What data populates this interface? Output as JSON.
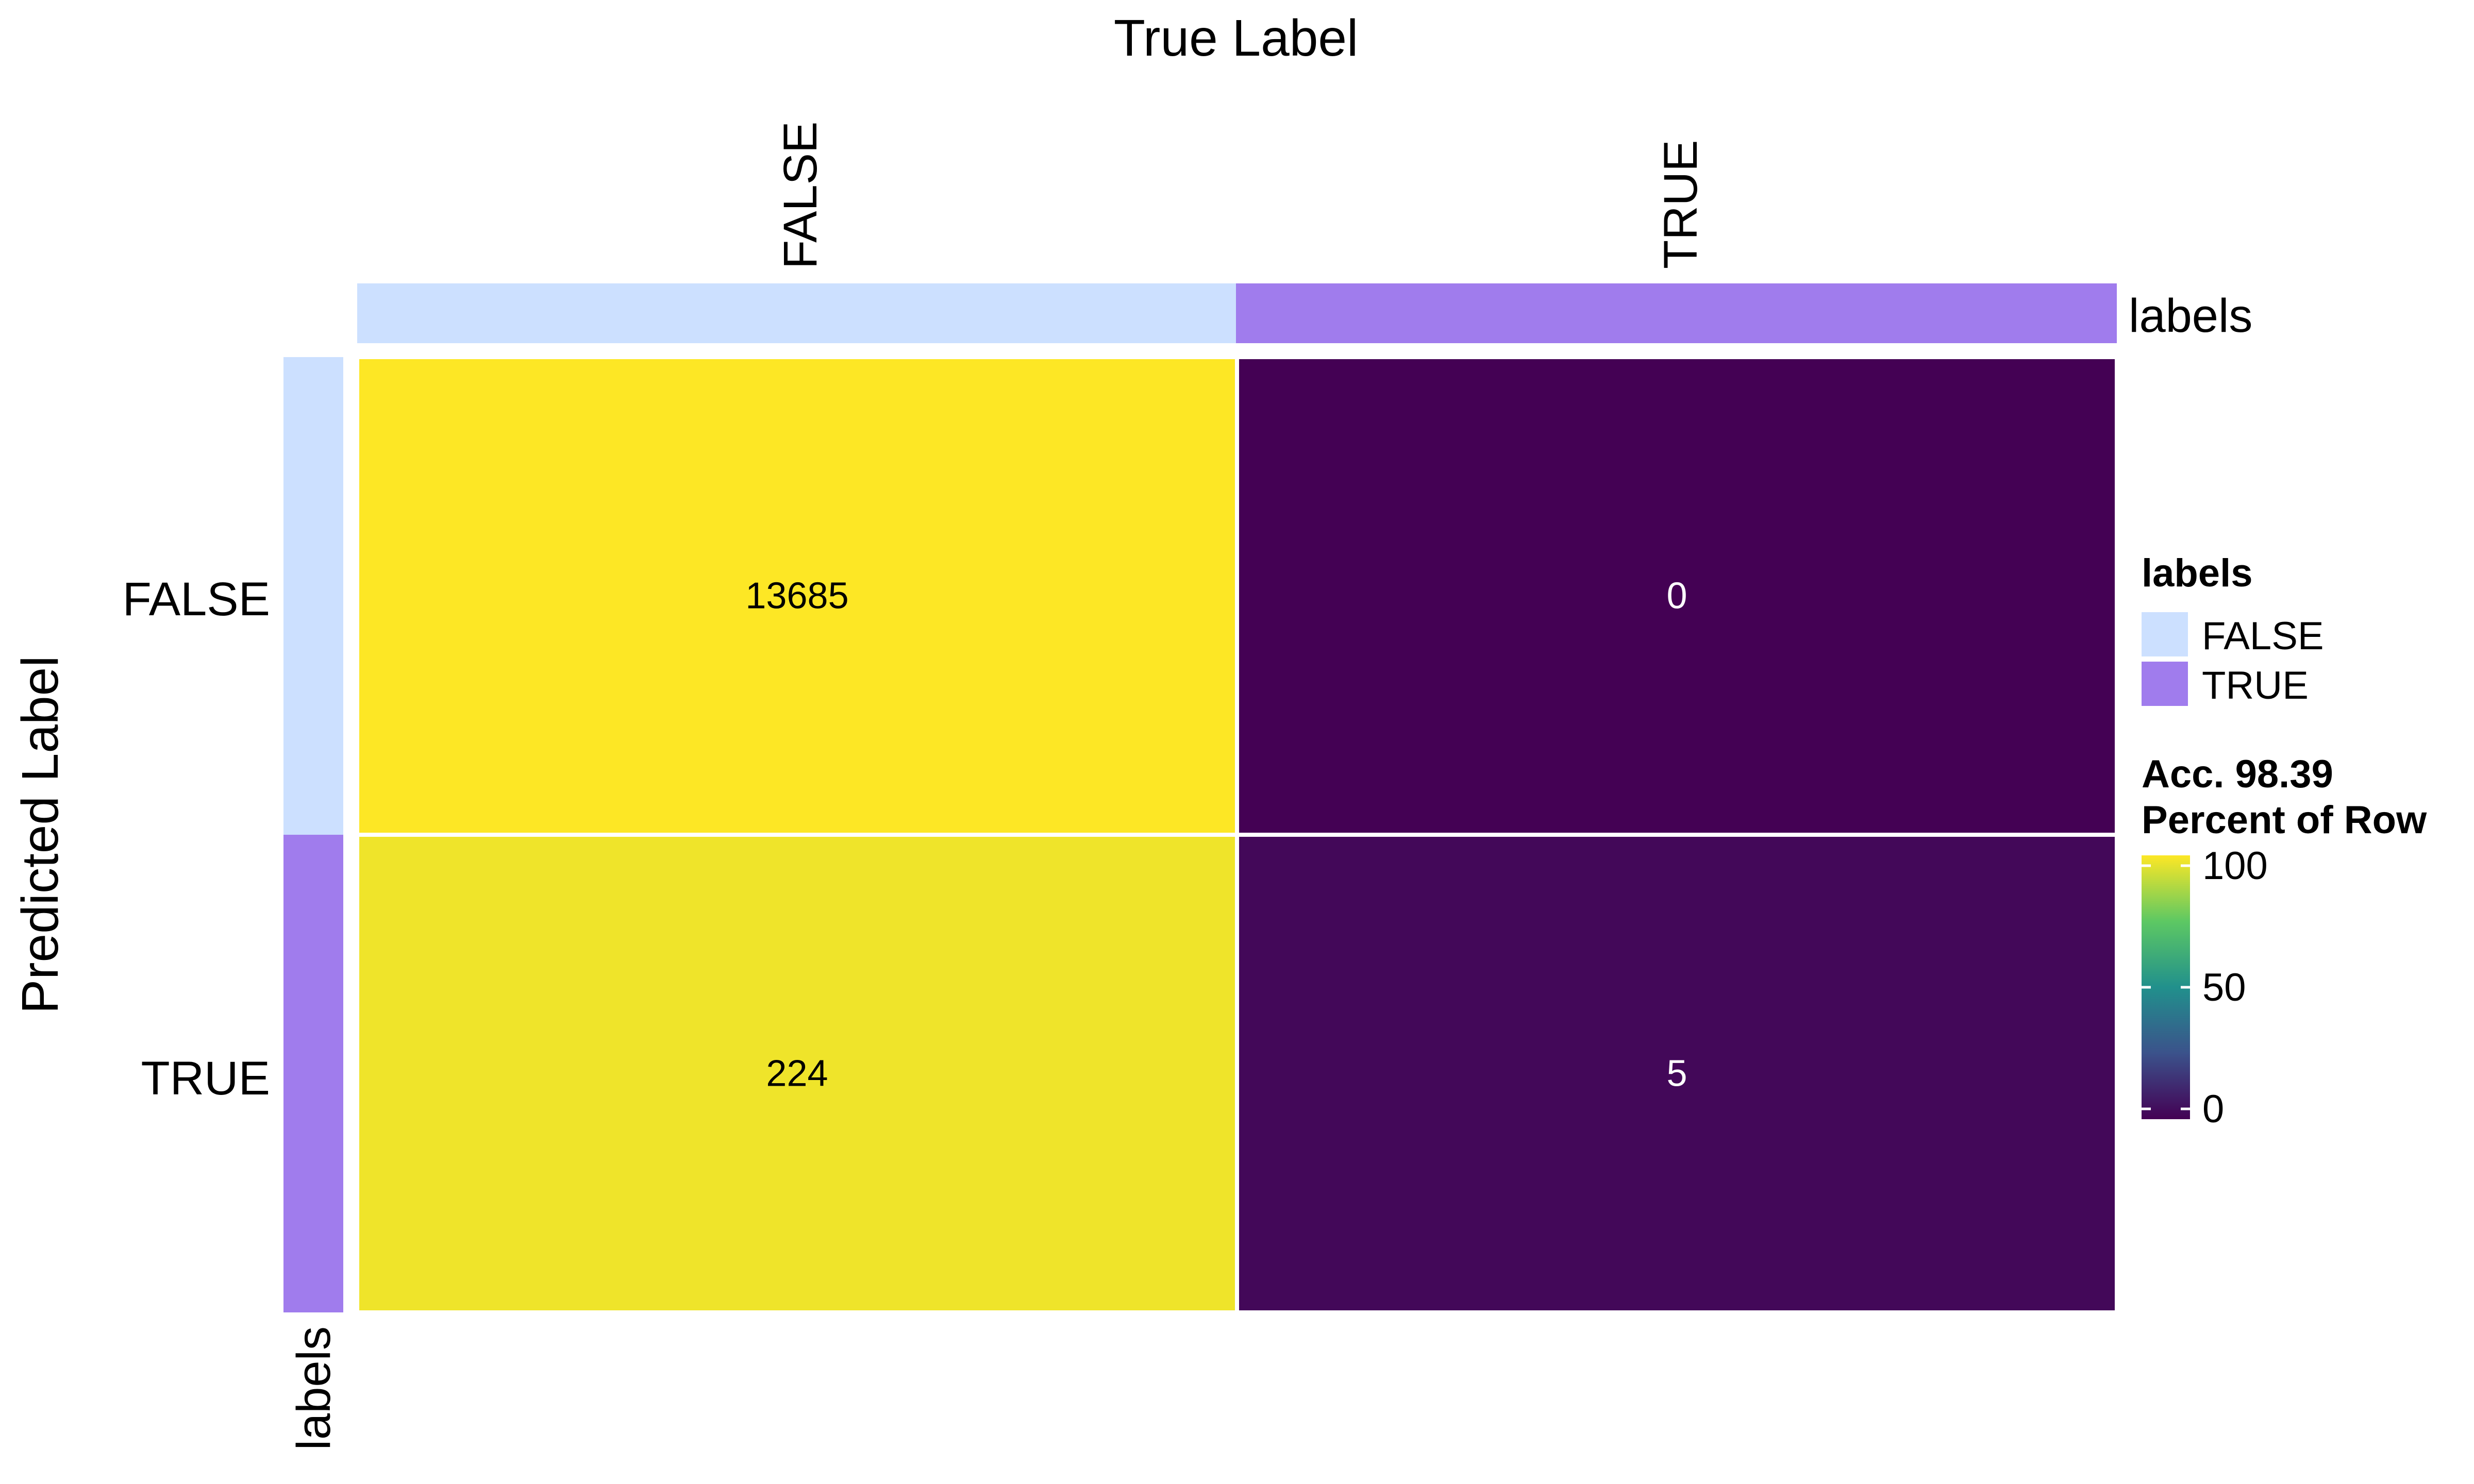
{
  "chart_data": {
    "type": "heatmap",
    "title": "",
    "xlabel": "True Label",
    "ylabel": "Predicted Label",
    "x_categories": [
      "FALSE",
      "TRUE"
    ],
    "y_categories": [
      "FALSE",
      "TRUE"
    ],
    "cells": [
      {
        "predicted": "FALSE",
        "true": "FALSE",
        "count": "13685",
        "percent_of_row": 100
      },
      {
        "predicted": "FALSE",
        "true": "TRUE",
        "count": "0",
        "percent_of_row": 0
      },
      {
        "predicted": "TRUE",
        "true": "FALSE",
        "count": "224",
        "percent_of_row": 97.8
      },
      {
        "predicted": "TRUE",
        "true": "TRUE",
        "count": "5",
        "percent_of_row": 2.2
      }
    ],
    "annotation_bars": {
      "top_label": "labels",
      "left_label": "labels",
      "colors": {
        "FALSE": "#cce0ff",
        "TRUE": "#a07ced"
      }
    },
    "legend": {
      "placement": "right",
      "labels_title": "labels",
      "labels_items": [
        {
          "label": "FALSE",
          "color": "#cce0ff"
        },
        {
          "label": "TRUE",
          "color": "#a07ced"
        }
      ],
      "fill_title_line1": "Acc. 98.39",
      "fill_title_line2": "Percent of Row",
      "fill_range": [
        0,
        100
      ],
      "fill_ticks": [
        "0",
        "50",
        "100"
      ],
      "colormap": [
        "#440154",
        "#3b528b",
        "#21908c",
        "#5dc863",
        "#fde725"
      ]
    }
  }
}
